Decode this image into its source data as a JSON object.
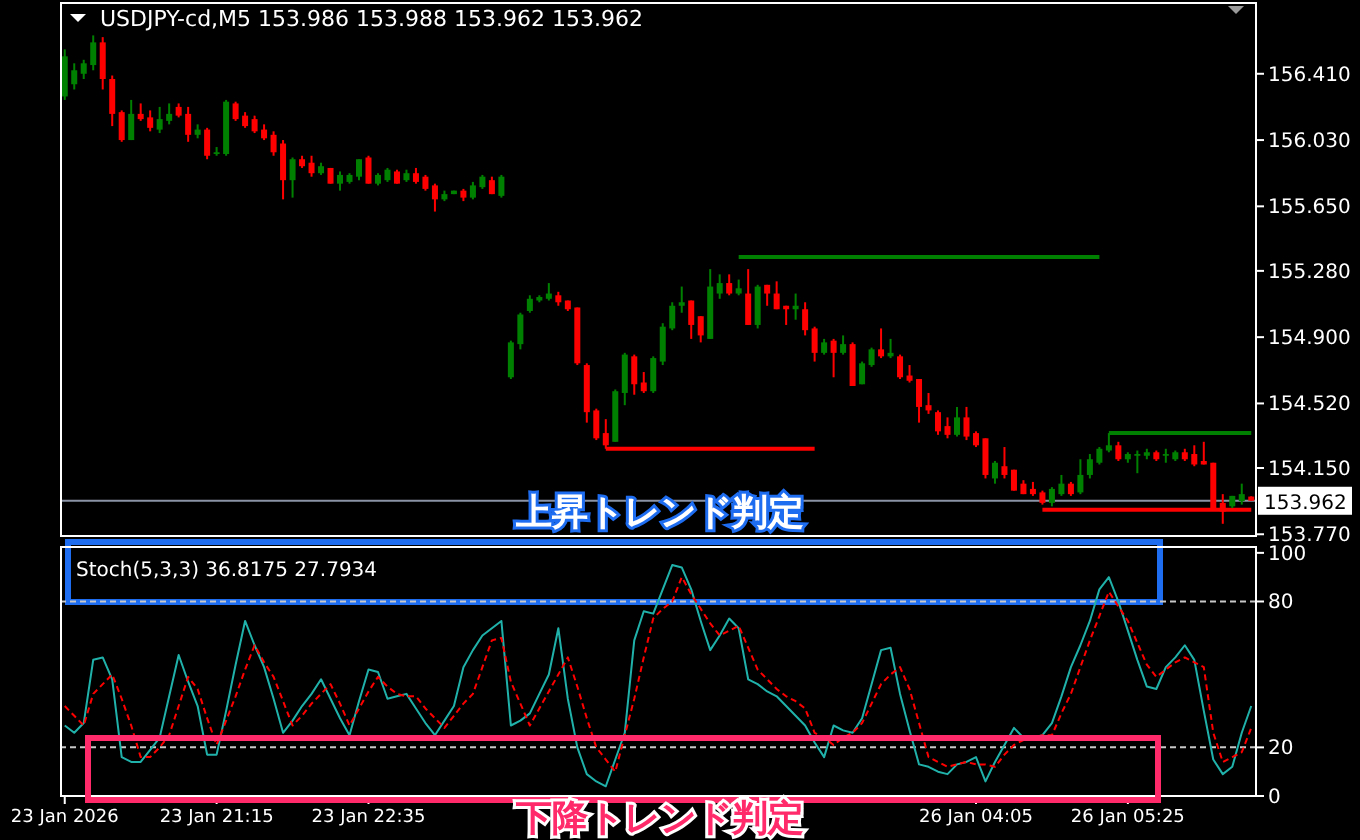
{
  "chart_data": [
    {
      "type": "candlestick",
      "title": "USDJPY-cd,M5  153.986 153.988 153.962 153.962",
      "categories": [
        null,
        null,
        null,
        null,
        null,
        null,
        null,
        null,
        null,
        null,
        null,
        null,
        null,
        null,
        null,
        null,
        null,
        null,
        null,
        null,
        null,
        null,
        null,
        null,
        null,
        null,
        null,
        null,
        null,
        null,
        null,
        null,
        null,
        null,
        null,
        null,
        null,
        null,
        null,
        null,
        null,
        null,
        null,
        null,
        null,
        null,
        null,
        null,
        null,
        null,
        null,
        null,
        null,
        null,
        null,
        null,
        null,
        null,
        null,
        null,
        null,
        null,
        null,
        null,
        null,
        null,
        null,
        null,
        null,
        null,
        null,
        null,
        null,
        null,
        null,
        null,
        null,
        null,
        null,
        null,
        null,
        null,
        null,
        null,
        null,
        null,
        null,
        null,
        null,
        null,
        null,
        null,
        null,
        null,
        null,
        null,
        null,
        null,
        null,
        null,
        null,
        null,
        null,
        null,
        null,
        null,
        null,
        null,
        null,
        null,
        null,
        null,
        null,
        null,
        null,
        null,
        null,
        null,
        null,
        null,
        null,
        null,
        null,
        null,
        null,
        null
      ],
      "ohlc": [
        [
          156.28,
          156.55,
          156.26,
          156.51
        ],
        [
          156.35,
          156.47,
          156.32,
          156.43
        ],
        [
          156.41,
          156.49,
          156.38,
          156.47
        ],
        [
          156.46,
          156.63,
          156.43,
          156.59
        ],
        [
          156.59,
          156.62,
          156.32,
          156.38
        ],
        [
          156.38,
          156.4,
          156.11,
          156.18
        ],
        [
          156.19,
          156.2,
          156.02,
          156.03
        ],
        [
          156.03,
          156.26,
          156.03,
          156.18
        ],
        [
          156.18,
          156.24,
          156.14,
          156.15
        ],
        [
          156.16,
          156.2,
          156.08,
          156.1
        ],
        [
          156.09,
          156.22,
          156.07,
          156.15
        ],
        [
          156.14,
          156.24,
          156.12,
          156.18
        ],
        [
          156.22,
          156.24,
          156.16,
          156.17
        ],
        [
          156.18,
          156.22,
          156.02,
          156.06
        ],
        [
          156.06,
          156.12,
          156.04,
          156.09
        ],
        [
          156.09,
          156.1,
          155.92,
          155.94
        ],
        [
          155.95,
          155.99,
          155.94,
          155.96
        ],
        [
          155.95,
          156.26,
          155.94,
          156.25
        ],
        [
          156.24,
          156.25,
          156.14,
          156.15
        ],
        [
          156.17,
          156.19,
          156.1,
          156.11
        ],
        [
          156.15,
          156.17,
          156.07,
          156.08
        ],
        [
          156.09,
          156.12,
          156.03,
          156.04
        ],
        [
          156.06,
          156.08,
          155.94,
          155.96
        ],
        [
          156.01,
          156.03,
          155.69,
          155.8
        ],
        [
          155.8,
          155.93,
          155.7,
          155.92
        ],
        [
          155.92,
          155.94,
          155.87,
          155.88
        ],
        [
          155.9,
          155.94,
          155.82,
          155.84
        ],
        [
          155.84,
          155.9,
          155.83,
          155.88
        ],
        [
          155.87,
          155.87,
          155.78,
          155.78
        ],
        [
          155.78,
          155.85,
          155.74,
          155.83
        ],
        [
          155.79,
          155.84,
          155.78,
          155.83
        ],
        [
          155.82,
          155.92,
          155.8,
          155.92
        ],
        [
          155.93,
          155.94,
          155.78,
          155.78
        ],
        [
          155.78,
          155.84,
          155.77,
          155.83
        ],
        [
          155.8,
          155.87,
          155.79,
          155.86
        ],
        [
          155.85,
          155.86,
          155.78,
          155.78
        ],
        [
          155.8,
          155.86,
          155.79,
          155.84
        ],
        [
          155.84,
          155.87,
          155.78,
          155.79
        ],
        [
          155.82,
          155.83,
          155.74,
          155.75
        ],
        [
          155.77,
          155.78,
          155.62,
          155.69
        ],
        [
          155.69,
          155.74,
          155.68,
          155.72
        ],
        [
          155.72,
          155.74,
          155.72,
          155.74
        ],
        [
          155.74,
          155.75,
          155.68,
          155.7
        ],
        [
          155.7,
          155.79,
          155.69,
          155.77
        ],
        [
          155.76,
          155.83,
          155.75,
          155.82
        ],
        [
          155.8,
          155.82,
          155.72,
          155.72
        ],
        [
          155.71,
          155.83,
          155.7,
          155.82
        ],
        [
          154.67,
          154.88,
          154.66,
          154.87
        ],
        [
          154.86,
          155.04,
          154.83,
          155.03
        ],
        [
          155.05,
          155.14,
          155.04,
          155.12
        ],
        [
          155.11,
          155.14,
          155.1,
          155.13
        ],
        [
          155.12,
          155.21,
          155.11,
          155.15
        ],
        [
          155.14,
          155.16,
          155.08,
          155.1
        ],
        [
          155.11,
          155.11,
          155.05,
          155.06
        ],
        [
          155.07,
          155.07,
          154.74,
          154.75
        ],
        [
          154.74,
          154.75,
          154.41,
          154.47
        ],
        [
          154.48,
          154.49,
          154.31,
          154.32
        ],
        [
          154.35,
          154.43,
          154.26,
          154.28
        ],
        [
          154.3,
          154.6,
          154.3,
          154.59
        ],
        [
          154.58,
          154.81,
          154.51,
          154.8
        ],
        [
          154.79,
          154.8,
          154.57,
          154.63
        ],
        [
          154.64,
          154.7,
          154.58,
          154.59
        ],
        [
          154.59,
          154.79,
          154.58,
          154.78
        ],
        [
          154.76,
          154.98,
          154.74,
          154.96
        ],
        [
          154.95,
          155.1,
          154.94,
          155.08
        ],
        [
          155.08,
          155.19,
          155.04,
          155.1
        ],
        [
          155.11,
          155.11,
          154.89,
          154.97
        ],
        [
          155.02,
          155.02,
          154.87,
          154.91
        ],
        [
          154.89,
          155.29,
          154.89,
          155.19
        ],
        [
          155.15,
          155.26,
          155.12,
          155.21
        ],
        [
          155.21,
          155.26,
          155.14,
          155.15
        ],
        [
          155.15,
          155.23,
          155.14,
          155.18
        ],
        [
          155.15,
          155.29,
          154.97,
          154.97
        ],
        [
          154.97,
          155.2,
          154.95,
          155.19
        ],
        [
          155.2,
          155.2,
          155.08,
          155.15
        ],
        [
          155.15,
          155.22,
          155.06,
          155.06
        ],
        [
          155.08,
          155.08,
          154.97,
          155.06
        ],
        [
          155.06,
          155.15,
          155.0,
          155.08
        ],
        [
          155.06,
          155.1,
          154.91,
          154.94
        ],
        [
          154.95,
          154.96,
          154.76,
          154.81
        ],
        [
          154.81,
          154.89,
          154.8,
          154.87
        ],
        [
          154.88,
          154.89,
          154.67,
          154.81
        ],
        [
          154.81,
          154.91,
          154.8,
          154.86
        ],
        [
          154.86,
          154.87,
          154.62,
          154.62
        ],
        [
          154.63,
          154.76,
          154.63,
          154.75
        ],
        [
          154.74,
          154.84,
          154.73,
          154.83
        ],
        [
          154.83,
          154.95,
          154.78,
          154.79
        ],
        [
          154.79,
          154.89,
          154.78,
          154.81
        ],
        [
          154.79,
          154.8,
          154.66,
          154.67
        ],
        [
          154.68,
          154.74,
          154.64,
          154.65
        ],
        [
          154.66,
          154.66,
          154.41,
          154.5
        ],
        [
          154.51,
          154.58,
          154.46,
          154.48
        ],
        [
          154.47,
          154.48,
          154.34,
          154.36
        ],
        [
          154.39,
          154.44,
          154.32,
          154.34
        ],
        [
          154.34,
          154.5,
          154.33,
          154.44
        ],
        [
          154.44,
          154.5,
          154.31,
          154.33
        ],
        [
          154.35,
          154.36,
          154.27,
          154.28
        ],
        [
          154.32,
          154.32,
          154.09,
          154.11
        ],
        [
          154.09,
          154.19,
          154.06,
          154.18
        ],
        [
          154.16,
          154.27,
          154.09,
          154.11
        ],
        [
          154.14,
          154.14,
          154.02,
          154.02
        ],
        [
          154.06,
          154.08,
          154.0,
          154.0
        ],
        [
          154.03,
          154.07,
          153.99,
          154.0
        ],
        [
          154.01,
          154.02,
          153.94,
          153.95
        ],
        [
          153.95,
          154.04,
          153.93,
          154.03
        ],
        [
          154.0,
          154.11,
          153.99,
          154.06
        ],
        [
          154.06,
          154.07,
          153.99,
          154.0
        ],
        [
          154.01,
          154.2,
          154.0,
          154.11
        ],
        [
          154.11,
          154.23,
          154.09,
          154.2
        ],
        [
          154.18,
          154.27,
          154.17,
          154.26
        ],
        [
          154.25,
          154.35,
          154.24,
          154.28
        ],
        [
          154.28,
          154.3,
          154.19,
          154.2
        ],
        [
          154.2,
          154.24,
          154.18,
          154.23
        ],
        [
          154.22,
          154.25,
          154.12,
          154.23
        ],
        [
          154.22,
          154.26,
          154.2,
          154.24
        ],
        [
          154.24,
          154.25,
          154.19,
          154.2
        ],
        [
          154.22,
          154.26,
          154.18,
          154.23
        ],
        [
          154.2,
          154.25,
          154.19,
          154.24
        ],
        [
          154.24,
          154.26,
          154.19,
          154.2
        ],
        [
          154.23,
          154.28,
          154.16,
          154.17
        ],
        [
          154.19,
          154.3,
          154.17,
          154.17
        ],
        [
          154.18,
          154.18,
          153.91,
          153.92
        ],
        [
          153.95,
          154.0,
          153.83,
          153.9
        ],
        [
          153.93,
          153.99,
          153.92,
          153.99
        ],
        [
          153.96,
          154.06,
          153.94,
          154.0
        ],
        [
          153.986,
          153.988,
          153.962,
          153.962
        ]
      ],
      "series": [
        {
          "type": "line",
          "color": "#008000",
          "values": [
            null,
            null,
            null,
            null,
            null,
            null,
            null,
            null,
            null,
            null,
            null,
            null,
            null,
            null,
            null,
            null,
            null,
            null,
            null,
            null,
            null,
            null,
            null,
            null,
            null,
            null,
            null,
            null,
            null,
            null,
            null,
            null,
            null,
            null,
            null,
            null,
            null,
            null,
            null,
            null,
            null,
            null,
            null,
            null,
            null,
            null,
            null,
            null,
            null,
            null,
            null,
            null,
            null,
            null,
            null,
            null,
            null,
            null,
            null,
            null,
            null,
            null,
            null,
            null,
            null,
            null,
            null,
            null,
            null,
            null,
            null,
            155.36,
            155.36,
            155.36,
            155.36,
            155.36,
            155.36,
            155.36,
            155.36,
            155.36,
            155.36,
            155.36,
            155.36,
            155.36,
            155.36,
            155.36,
            155.36,
            155.36,
            155.36,
            155.36,
            155.36,
            155.36,
            155.36,
            155.36,
            155.36,
            155.36,
            155.36,
            155.36,
            155.36,
            155.36,
            155.36,
            155.36,
            155.36,
            155.36,
            155.36,
            155.36,
            155.36,
            155.36,
            155.36,
            155.36,
            null,
            null,
            null,
            null,
            null,
            null,
            null,
            null,
            null,
            null,
            null,
            null,
            null,
            null,
            null,
            null
          ]
        },
        {
          "type": "line",
          "color": "#ff0000",
          "values": [
            null,
            null,
            null,
            null,
            null,
            null,
            null,
            null,
            null,
            null,
            null,
            null,
            null,
            null,
            null,
            null,
            null,
            null,
            null,
            null,
            null,
            null,
            null,
            null,
            null,
            null,
            null,
            null,
            null,
            null,
            null,
            null,
            null,
            null,
            null,
            null,
            null,
            null,
            null,
            null,
            null,
            null,
            null,
            null,
            null,
            null,
            null,
            null,
            null,
            null,
            null,
            null,
            null,
            null,
            null,
            null,
            null,
            154.26,
            154.26,
            154.26,
            154.26,
            154.26,
            154.26,
            154.26,
            154.26,
            154.26,
            154.26,
            154.26,
            154.26,
            154.26,
            154.26,
            154.26,
            154.26,
            154.26,
            154.26,
            154.26,
            154.26,
            154.26,
            154.26,
            154.26,
            null,
            null,
            null,
            null,
            null,
            null,
            null,
            null,
            null,
            null,
            null,
            null,
            null,
            null,
            null,
            null,
            null,
            null,
            null,
            null,
            null,
            null,
            null,
            null,
            null,
            null,
            null,
            null,
            null,
            null,
            null,
            null,
            null,
            null,
            null,
            null,
            null,
            null,
            null,
            null,
            null,
            null,
            null,
            null,
            null,
            null
          ]
        },
        {
          "type": "line",
          "color": "#008000",
          "values": [
            null,
            null,
            null,
            null,
            null,
            null,
            null,
            null,
            null,
            null,
            null,
            null,
            null,
            null,
            null,
            null,
            null,
            null,
            null,
            null,
            null,
            null,
            null,
            null,
            null,
            null,
            null,
            null,
            null,
            null,
            null,
            null,
            null,
            null,
            null,
            null,
            null,
            null,
            null,
            null,
            null,
            null,
            null,
            null,
            null,
            null,
            null,
            null,
            null,
            null,
            null,
            null,
            null,
            null,
            null,
            null,
            null,
            null,
            null,
            null,
            null,
            null,
            null,
            null,
            null,
            null,
            null,
            null,
            null,
            null,
            null,
            null,
            null,
            null,
            null,
            null,
            null,
            null,
            null,
            null,
            null,
            null,
            null,
            null,
            null,
            null,
            null,
            null,
            null,
            null,
            null,
            null,
            null,
            null,
            null,
            null,
            null,
            null,
            null,
            null,
            null,
            null,
            null,
            null,
            null,
            null,
            null,
            null,
            null,
            null,
            154.35,
            154.35,
            154.35,
            154.35,
            154.35,
            154.35,
            154.35,
            154.35,
            154.35,
            154.35,
            154.35,
            154.35,
            154.35,
            154.35,
            154.35,
            154.35
          ]
        },
        {
          "type": "line",
          "color": "#ff0000",
          "values": [
            null,
            null,
            null,
            null,
            null,
            null,
            null,
            null,
            null,
            null,
            null,
            null,
            null,
            null,
            null,
            null,
            null,
            null,
            null,
            null,
            null,
            null,
            null,
            null,
            null,
            null,
            null,
            null,
            null,
            null,
            null,
            null,
            null,
            null,
            null,
            null,
            null,
            null,
            null,
            null,
            null,
            null,
            null,
            null,
            null,
            null,
            null,
            null,
            null,
            null,
            null,
            null,
            null,
            null,
            null,
            null,
            null,
            null,
            null,
            null,
            null,
            null,
            null,
            null,
            null,
            null,
            null,
            null,
            null,
            null,
            null,
            null,
            null,
            null,
            null,
            null,
            null,
            null,
            null,
            null,
            null,
            null,
            null,
            null,
            null,
            null,
            null,
            null,
            null,
            null,
            null,
            null,
            null,
            null,
            null,
            null,
            null,
            null,
            null,
            null,
            null,
            null,
            null,
            153.91,
            153.91,
            153.91,
            153.91,
            153.91,
            153.91,
            153.91,
            153.91,
            153.91,
            153.91,
            153.91,
            153.91,
            153.91,
            153.91,
            153.91,
            153.91,
            153.91,
            153.91,
            153.91,
            153.91,
            153.91,
            153.91,
            153.91
          ]
        }
      ],
      "ylim": [
        153.76,
        156.81
      ],
      "yticks": [
        {
          "value": 153.77,
          "label": "153.770"
        },
        {
          "value": 154.15,
          "label": "154.150"
        },
        {
          "value": 154.52,
          "label": "154.520"
        },
        {
          "value": 154.9,
          "label": "154.900"
        },
        {
          "value": 155.28,
          "label": "155.280"
        },
        {
          "value": 155.65,
          "label": "155.650"
        },
        {
          "value": 156.03,
          "label": "156.030"
        },
        {
          "value": 156.41,
          "label": "156.410"
        }
      ],
      "tick_labels": "y",
      "ref_lines": [
        {
          "axis": "y",
          "value": 153.962,
          "label": "153.962",
          "color": "#8a94a6"
        }
      ],
      "annotations": [
        "上昇トレンド判定"
      ]
    },
    {
      "type": "line",
      "title": "Stoch(5,3,3) 36.8175 27.7934",
      "series": [
        {
          "color": "#20b2aa",
          "values": [
            29,
            26,
            30,
            56,
            57,
            48,
            16,
            14,
            14,
            19,
            24,
            41,
            58,
            47,
            37,
            17,
            17,
            35,
            54,
            72,
            62,
            53,
            40,
            26,
            31,
            37,
            42,
            48,
            40,
            32,
            25,
            39,
            52,
            51,
            40,
            41,
            42,
            36,
            30,
            25,
            31,
            37,
            53,
            60,
            66,
            69,
            72,
            29,
            31,
            34,
            42,
            50,
            69,
            40,
            20,
            9,
            6,
            4,
            15,
            26,
            64,
            76,
            75,
            85,
            95,
            94,
            85,
            72,
            60,
            66,
            73,
            69,
            48,
            46,
            43,
            41,
            37,
            33,
            29,
            22,
            16,
            29,
            27,
            26,
            32,
            46,
            60,
            61,
            42,
            27,
            13,
            12,
            10,
            9,
            13,
            14,
            16,
            6,
            14,
            21,
            28,
            24,
            24,
            25,
            30,
            41,
            53,
            62,
            72,
            85,
            90,
            80,
            68,
            56,
            45,
            44,
            53,
            57,
            62,
            56,
            35,
            15,
            9,
            12,
            26,
            37
          ]
        },
        {
          "color": "#ff0000",
          "line_style": "dashed",
          "values": [
            37,
            33,
            29,
            42,
            46,
            50,
            40,
            29,
            16,
            16,
            20,
            25,
            37,
            49,
            44,
            32,
            21,
            31,
            41,
            52,
            62,
            55,
            49,
            39,
            29,
            33,
            38,
            42,
            46,
            38,
            29,
            36,
            43,
            49,
            45,
            42,
            41,
            41,
            36,
            32,
            28,
            33,
            38,
            42,
            53,
            64,
            65,
            47,
            38,
            29,
            36,
            43,
            50,
            57,
            45,
            32,
            20,
            15,
            10,
            25,
            40,
            57,
            73,
            77,
            80,
            90,
            83,
            77,
            71,
            66,
            68,
            70,
            61,
            52,
            48,
            44,
            41,
            39,
            36,
            26,
            24,
            21,
            24,
            26,
            30,
            38,
            46,
            50,
            53,
            44,
            30,
            16,
            14,
            12,
            13,
            14,
            13,
            13,
            12,
            17,
            21,
            23,
            24,
            25,
            25,
            34,
            42,
            53,
            64,
            74,
            84,
            78,
            72,
            63,
            54,
            49,
            52,
            55,
            57,
            55,
            53,
            26,
            14,
            16,
            18,
            28
          ]
        }
      ],
      "categories": [
        "23 Jan 2026",
        null,
        null,
        null,
        null,
        null,
        null,
        null,
        null,
        null,
        null,
        null,
        null,
        null,
        null,
        null,
        "23 Jan 21:15",
        null,
        null,
        null,
        null,
        null,
        null,
        null,
        null,
        null,
        null,
        null,
        null,
        null,
        null,
        null,
        "23 Jan 22:35",
        null,
        null,
        null,
        null,
        null,
        null,
        null,
        null,
        null,
        null,
        null,
        null,
        null,
        null,
        null,
        null,
        null,
        null,
        null,
        null,
        null,
        null,
        null,
        null,
        null,
        null,
        null,
        null,
        null,
        null,
        null,
        null,
        null,
        null,
        null,
        null,
        null,
        null,
        null,
        null,
        null,
        null,
        null,
        null,
        null,
        null,
        null,
        null,
        null,
        null,
        null,
        null,
        null,
        null,
        null,
        null,
        null,
        null,
        null,
        null,
        null,
        null,
        null,
        "26 Jan 04:05",
        null,
        null,
        null,
        null,
        null,
        null,
        null,
        null,
        null,
        null,
        null,
        null,
        null,
        null,
        null,
        "26 Jan 05:25",
        null,
        null,
        null,
        null,
        null,
        null,
        null,
        null,
        null,
        null,
        null,
        null,
        null
      ],
      "ylim": [
        0,
        102
      ],
      "yticks": [
        0,
        20,
        80,
        100
      ],
      "ref_lines": [
        {
          "axis": "y",
          "value": 20,
          "color": "#c8c8c8",
          "line_style": "dashed"
        },
        {
          "axis": "y",
          "value": 80,
          "color": "#c8c8c8",
          "line_style": "dashed"
        }
      ],
      "annotations": [
        "下降トレンド判定"
      ]
    }
  ]
}
